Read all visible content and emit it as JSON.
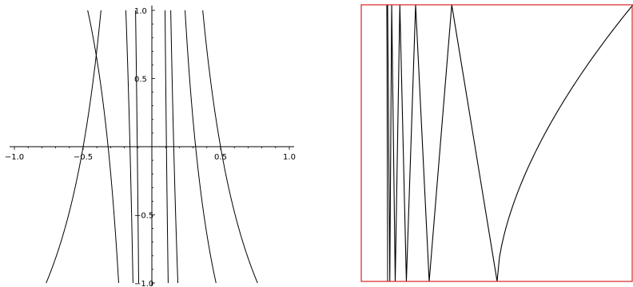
{
  "chart_data": [
    {
      "type": "line",
      "title": "",
      "xlabel": "",
      "ylabel": "",
      "xlim": [
        -1.0,
        1.0
      ],
      "ylim": [
        -1.0,
        1.0
      ],
      "grid": false,
      "x_ticks": [
        -1.0,
        -0.5,
        0.5,
        1.0
      ],
      "x_tick_labels": [
        "−1.0",
        "−0.5",
        "0.5",
        "1.0"
      ],
      "y_ticks": [
        1.0,
        0.5,
        -0.5,
        -1.0
      ],
      "y_tick_labels": [
        "1.0",
        "0.5",
        "−0.5",
        "−1.0"
      ],
      "function": "contour lines of tan(1/x) against y",
      "series_color": "#000000"
    },
    {
      "type": "line",
      "title": "",
      "xlabel": "",
      "ylabel": "",
      "xlim": [
        0.0,
        1.0
      ],
      "ylim": [
        0.0,
        1.0
      ],
      "function": "zig-zag trace with frequency increasing toward x = 0",
      "frame_color": "#dd2222",
      "series_color": "#000000",
      "vertices": [
        [
          0.097,
          1.0
        ],
        [
          0.105,
          0.0
        ],
        [
          0.112,
          1.0
        ],
        [
          0.125,
          0.0
        ],
        [
          0.142,
          1.0
        ],
        [
          0.166,
          0.0
        ],
        [
          0.2,
          1.0
        ],
        [
          0.25,
          0.0
        ],
        [
          0.333,
          1.0
        ],
        [
          0.5,
          0.0
        ]
      ]
    }
  ]
}
